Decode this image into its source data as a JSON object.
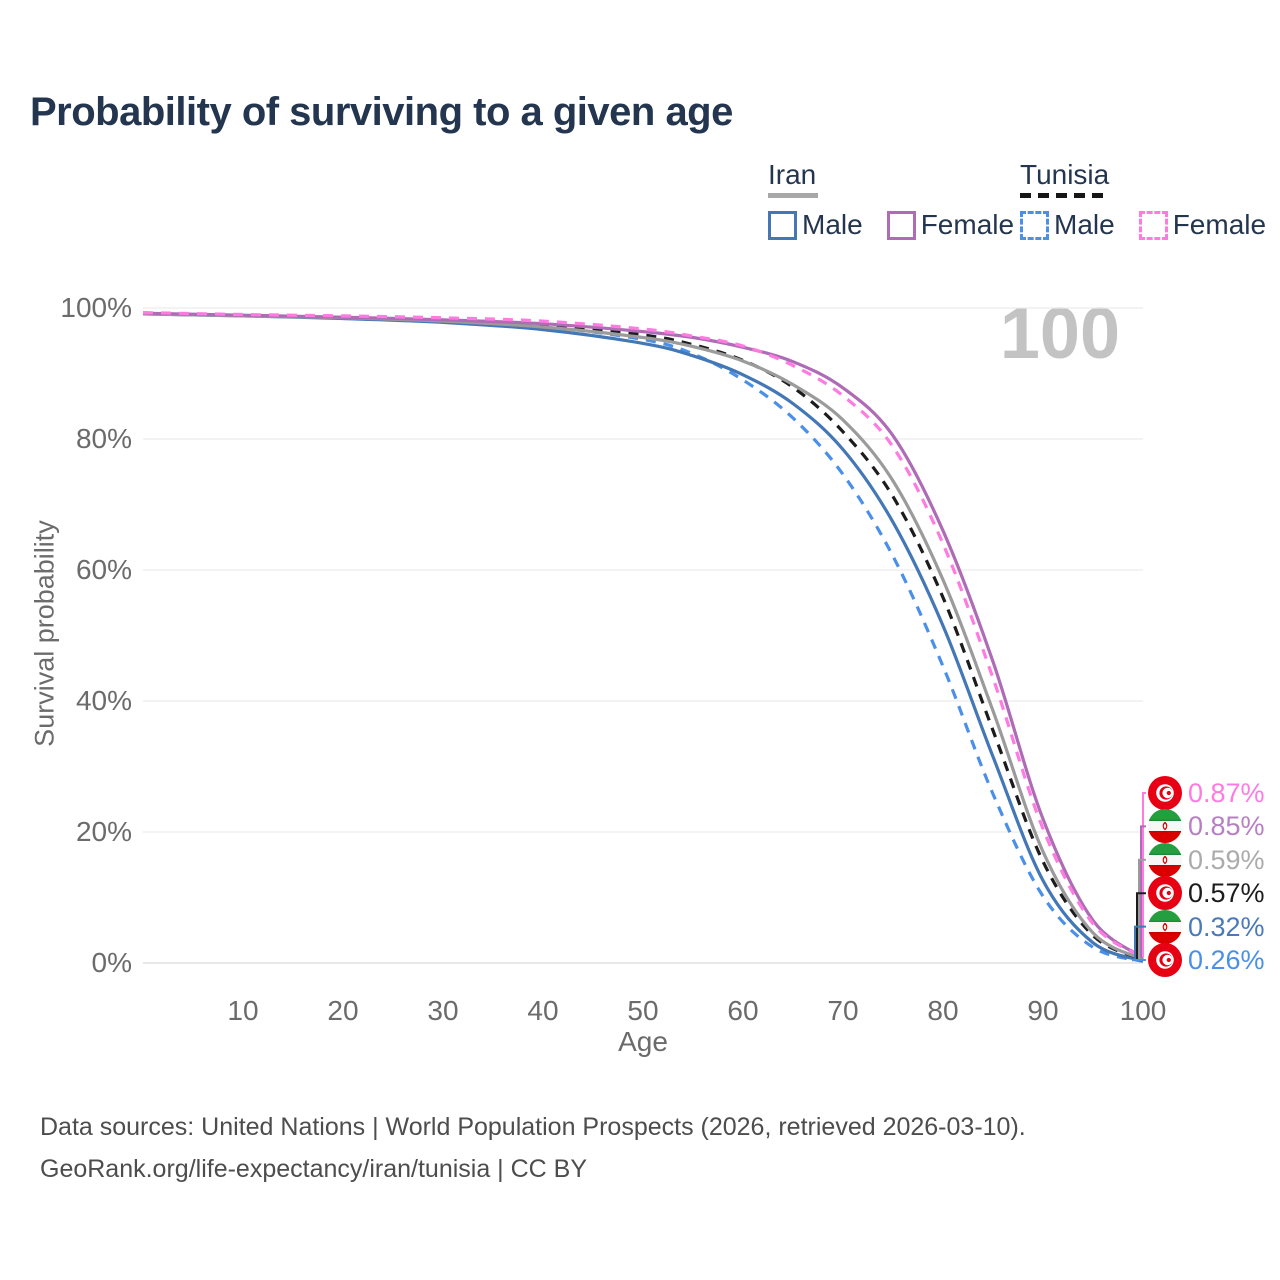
{
  "title": "Probability of surviving to a given age",
  "watermark": "100",
  "legend": {
    "groups": [
      {
        "label": "Iran",
        "line_style": "solid",
        "sample_color": "#a8a8a8",
        "items": [
          {
            "label": "Male",
            "color": "#4377b6",
            "dashed": false
          },
          {
            "label": "Female",
            "color": "#ad6cb5",
            "dashed": false
          }
        ]
      },
      {
        "label": "Tunisia",
        "line_style": "dashed",
        "sample_color": "#161616",
        "items": [
          {
            "label": "Male",
            "color": "#4a90e8",
            "dashed": true
          },
          {
            "label": "Female",
            "color": "#ff7ae1",
            "dashed": true
          }
        ]
      }
    ]
  },
  "chart_data": {
    "type": "line",
    "title": "Probability of surviving to a given age",
    "xlabel": "Age",
    "ylabel": "Survival probability",
    "xlim": [
      0,
      100
    ],
    "ylim": [
      0,
      100
    ],
    "grid": "horizontal",
    "x_ticks": [
      10,
      20,
      30,
      40,
      50,
      60,
      70,
      80,
      90,
      100
    ],
    "y_tick_values": [
      0,
      20,
      40,
      60,
      80,
      100
    ],
    "y_tick_labels": [
      "0%",
      "20%",
      "40%",
      "60%",
      "80%",
      "100%"
    ],
    "ages": [
      0,
      10,
      20,
      30,
      40,
      50,
      55,
      60,
      65,
      70,
      75,
      80,
      85,
      90,
      95,
      100
    ],
    "series": [
      {
        "name": "Tunisia Female",
        "country": "Tunisia",
        "sex": "Female",
        "color": "#ff7ae1",
        "label_color": "#ff7ae1",
        "dashed": true,
        "flag": "tunisia",
        "end_label": "0.87%",
        "values": [
          99.3,
          99.0,
          98.8,
          98.5,
          98.0,
          96.8,
          95.7,
          94.2,
          91.2,
          86.6,
          78.8,
          64.0,
          43.5,
          20.5,
          6.0,
          0.87
        ]
      },
      {
        "name": "Iran Female",
        "country": "Iran",
        "sex": "Female",
        "color": "#ad6cb5",
        "label_color": "#b77fc4",
        "dashed": false,
        "flag": "iran",
        "end_label": "0.85%",
        "values": [
          99.2,
          98.9,
          98.6,
          98.2,
          97.6,
          96.4,
          95.5,
          94.0,
          91.8,
          87.8,
          80.5,
          66.0,
          46.0,
          22.0,
          6.5,
          0.85
        ]
      },
      {
        "name": "Iran",
        "country": "Iran",
        "sex": "Both",
        "color": "#9b9b9b",
        "label_color": "#ababab",
        "dashed": false,
        "flag": "iran",
        "end_label": "0.59%",
        "values": [
          99.1,
          98.8,
          98.5,
          98.0,
          97.1,
          95.5,
          94.1,
          91.9,
          88.3,
          82.9,
          73.6,
          58.5,
          38.5,
          17.0,
          4.6,
          0.59
        ]
      },
      {
        "name": "Tunisia",
        "country": "Tunisia",
        "sex": "Both",
        "color": "#1c1c1c",
        "label_color": "#1c1c1c",
        "dashed": true,
        "flag": "tunisia",
        "end_label": "0.57%",
        "values": [
          99.2,
          98.9,
          98.7,
          98.3,
          97.5,
          95.9,
          94.4,
          92.0,
          87.9,
          81.1,
          71.2,
          55.8,
          35.5,
          15.5,
          4.2,
          0.57
        ]
      },
      {
        "name": "Iran Male",
        "country": "Iran",
        "sex": "Male",
        "color": "#4377b6",
        "label_color": "#4a7ab8",
        "dashed": false,
        "flag": "iran",
        "end_label": "0.32%",
        "values": [
          99.1,
          98.8,
          98.4,
          97.8,
          96.7,
          94.6,
          92.7,
          89.8,
          85.4,
          78.4,
          67.3,
          51.5,
          31.5,
          12.6,
          3.1,
          0.32
        ]
      },
      {
        "name": "Tunisia Male",
        "country": "Tunisia",
        "sex": "Male",
        "color": "#4a90e8",
        "label_color": "#4a90e8",
        "dashed": true,
        "flag": "tunisia",
        "end_label": "0.26%",
        "values": [
          99.2,
          98.9,
          98.6,
          98.1,
          97.2,
          95.2,
          93.0,
          89.0,
          83.2,
          74.6,
          62.1,
          45.3,
          25.8,
          10.2,
          2.4,
          0.26
        ]
      }
    ]
  },
  "footer": {
    "line1": "Data sources: United Nations | World Population Prospects (2026, retrieved 2026-03-10).",
    "line2": "GeoRank.org/life-expectancy/iran/tunisia | CC BY"
  }
}
